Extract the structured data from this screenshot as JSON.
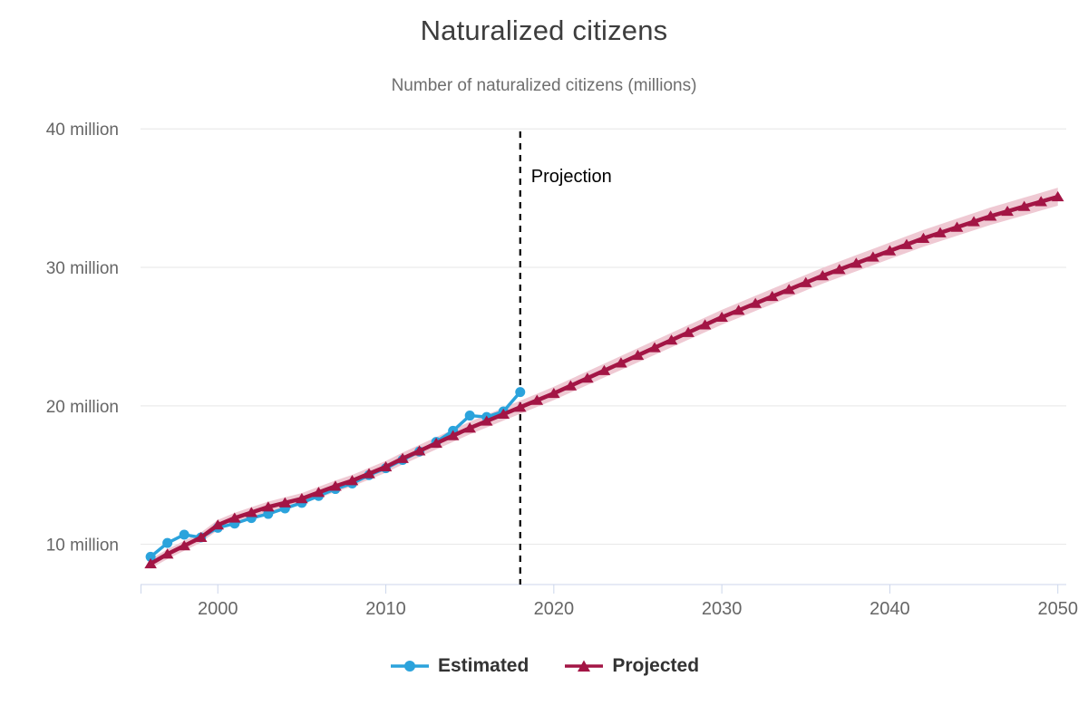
{
  "chart_data": {
    "type": "line",
    "title": "Naturalized citizens",
    "subtitle": "Number of naturalized citizens (millions)",
    "xlabel": "",
    "ylabel": "Number of naturalized citizens (millions)",
    "xlim": [
      1995.4,
      2050.5
    ],
    "ylim": [
      7.1,
      40.8
    ],
    "grid": "horizontal-only",
    "legend_position": "bottom",
    "x_ticks": [
      2000,
      2010,
      2020,
      2030,
      2040,
      2050
    ],
    "y_ticks": [
      {
        "value": 10,
        "label": "10 million"
      },
      {
        "value": 20,
        "label": "20 million"
      },
      {
        "value": 30,
        "label": "30 million"
      },
      {
        "value": 40,
        "label": "40 million"
      }
    ],
    "projection_divider": {
      "x": 2018,
      "label": "Projection",
      "style": "dashed",
      "color": "#000000"
    },
    "series": [
      {
        "name": "Estimated",
        "marker": "circle",
        "color": "#2BA3DC",
        "x": [
          1996,
          1997,
          1998,
          1999,
          2000,
          2001,
          2002,
          2003,
          2004,
          2005,
          2006,
          2007,
          2008,
          2009,
          2010,
          2011,
          2012,
          2013,
          2014,
          2015,
          2016,
          2017,
          2018
        ],
        "values": [
          9.1,
          10.1,
          10.7,
          10.5,
          11.2,
          11.5,
          11.9,
          12.2,
          12.6,
          13.0,
          13.5,
          14.0,
          14.4,
          15.0,
          15.5,
          16.1,
          16.7,
          17.4,
          18.2,
          19.3,
          19.2,
          19.6,
          21.0
        ]
      },
      {
        "name": "Projected",
        "marker": "triangle-up",
        "color": "#A31545",
        "band": {
          "color": "#EFC9D3",
          "start_halfwidth": 0.35,
          "end_halfwidth": 0.65
        },
        "x": [
          1996,
          1997,
          1998,
          1999,
          2000,
          2001,
          2002,
          2003,
          2004,
          2005,
          2006,
          2007,
          2008,
          2009,
          2010,
          2011,
          2012,
          2013,
          2014,
          2015,
          2016,
          2017,
          2018,
          2019,
          2020,
          2021,
          2022,
          2023,
          2024,
          2025,
          2026,
          2027,
          2028,
          2029,
          2030,
          2031,
          2032,
          2033,
          2034,
          2035,
          2036,
          2037,
          2038,
          2039,
          2040,
          2041,
          2042,
          2043,
          2044,
          2045,
          2046,
          2047,
          2048,
          2049,
          2050
        ],
        "values": [
          8.6,
          9.3,
          9.9,
          10.5,
          11.4,
          11.9,
          12.3,
          12.7,
          13.0,
          13.3,
          13.75,
          14.2,
          14.6,
          15.1,
          15.6,
          16.2,
          16.75,
          17.3,
          17.85,
          18.4,
          18.9,
          19.4,
          19.9,
          20.4,
          20.9,
          21.45,
          22.0,
          22.55,
          23.1,
          23.65,
          24.2,
          24.75,
          25.3,
          25.85,
          26.4,
          26.9,
          27.4,
          27.9,
          28.4,
          28.9,
          29.4,
          29.85,
          30.3,
          30.75,
          31.2,
          31.65,
          32.1,
          32.5,
          32.9,
          33.3,
          33.7,
          34.05,
          34.4,
          34.75,
          35.1
        ]
      }
    ]
  },
  "legend": {
    "items": [
      {
        "label": "Estimated",
        "marker": "circle",
        "color": "#2BA3DC"
      },
      {
        "label": "Projected",
        "marker": "triangle-up",
        "color": "#A31545"
      }
    ]
  },
  "colors": {
    "grid": "#e6e6e6",
    "axis": "#ccd6eb",
    "axis_text": "#666666",
    "title_text": "#3d3d3d",
    "subtitle_text": "#6e6e6e",
    "legend_text": "#333333",
    "divider": "#000000"
  }
}
